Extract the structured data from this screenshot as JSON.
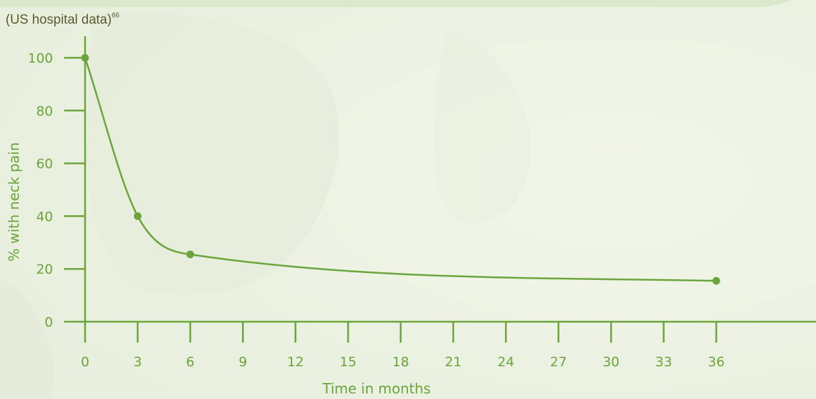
{
  "chart_data": {
    "type": "line",
    "subtitle": "(US hospital data)",
    "subtitle_ref": "66",
    "xlabel": "Time in months",
    "ylabel": "% with neck pain",
    "xlim": [
      0,
      36
    ],
    "ylim": [
      0,
      100
    ],
    "x_ticks": [
      0,
      3,
      6,
      9,
      12,
      15,
      18,
      21,
      24,
      27,
      30,
      33,
      36
    ],
    "x_tick_labels": [
      "0",
      "3",
      "6",
      "9",
      "12",
      "15",
      "18",
      "21",
      "24",
      "27",
      "30",
      "33",
      "36"
    ],
    "y_ticks": [
      0,
      20,
      40,
      60,
      80,
      100
    ],
    "y_tick_labels": [
      "0",
      "20",
      "40",
      "60",
      "80",
      "100"
    ],
    "series": [
      {
        "x": [
          0,
          3,
          6,
          36
        ],
        "y": [
          100,
          40,
          25.5,
          15.5
        ]
      }
    ],
    "grid": false,
    "colors": {
      "line": "#6aa43a",
      "axis": "#6aa43a",
      "text": "#6aa43a",
      "subtitle": "#595b2e",
      "background": "#eef3e6"
    }
  }
}
